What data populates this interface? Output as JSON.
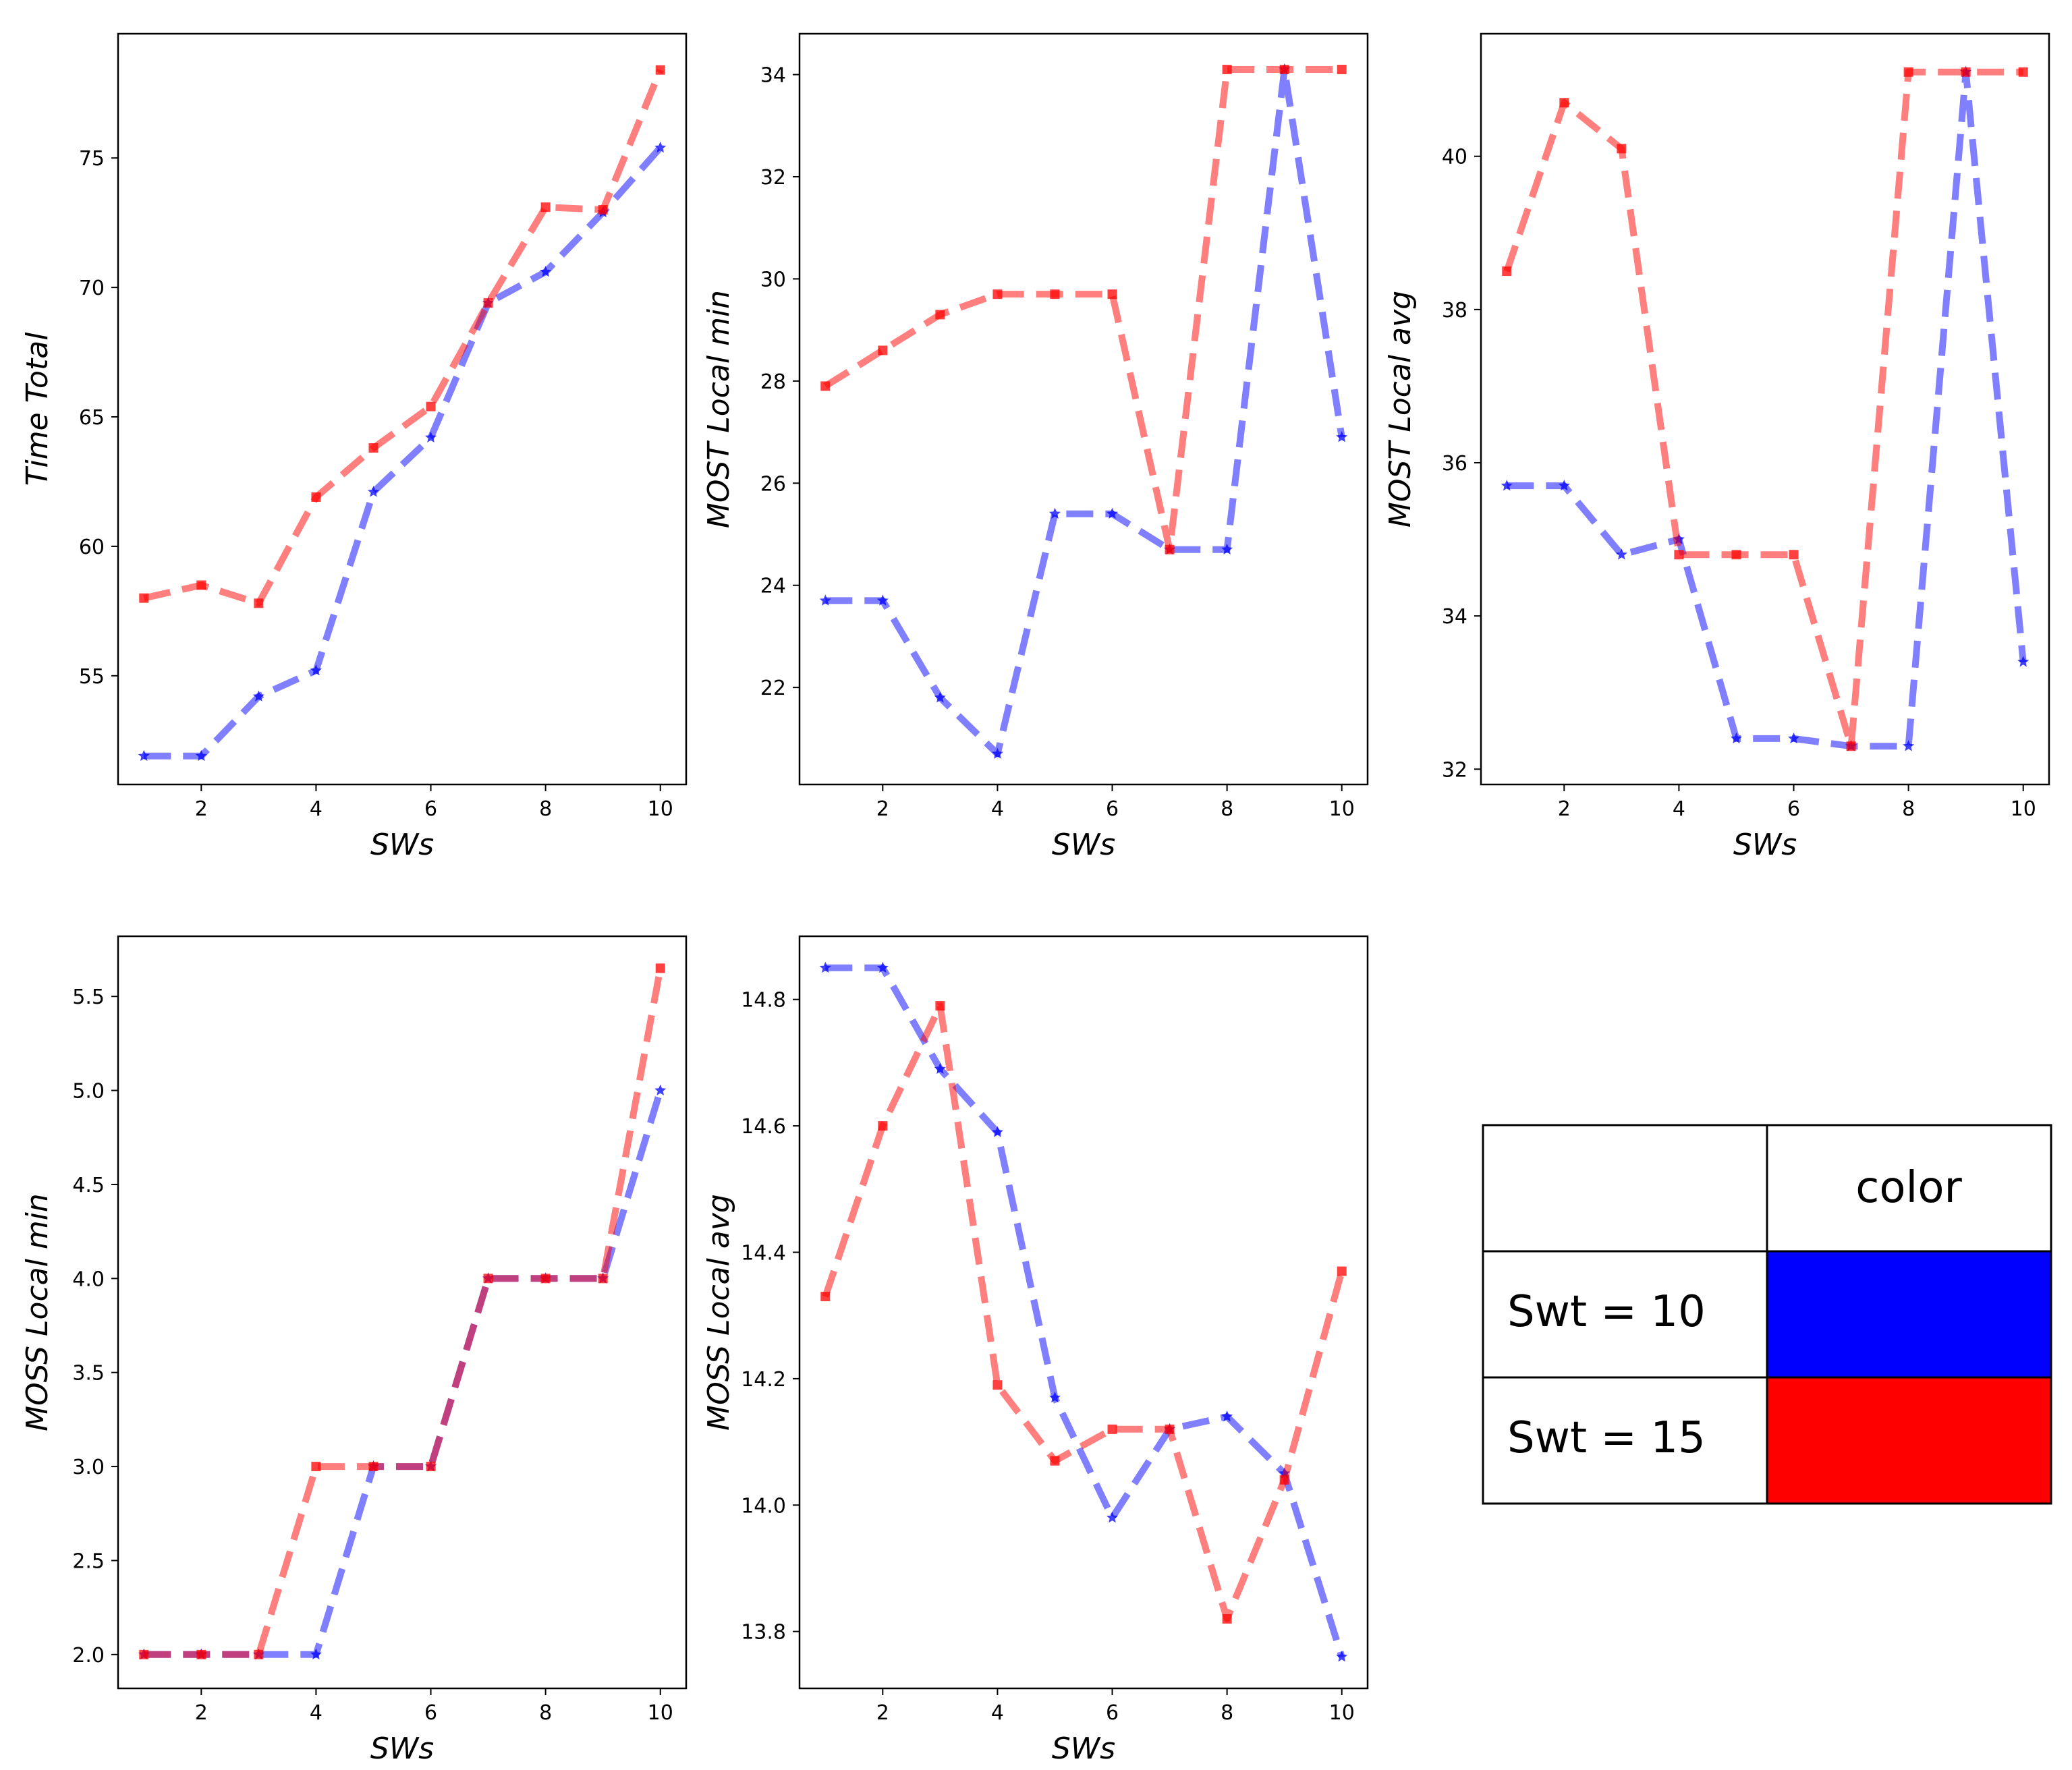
{
  "chart_data": [
    {
      "type": "line",
      "xlabel": "SWs",
      "ylabel": "Time Total",
      "xlim": [
        0.55,
        10.45
      ],
      "ylim": [
        50.8,
        79.8
      ],
      "xticks": [
        2,
        4,
        6,
        8,
        10
      ],
      "yticks": [
        55,
        60,
        65,
        70,
        75
      ],
      "x": [
        1,
        2,
        3,
        4,
        5,
        6,
        7,
        8,
        9,
        10
      ],
      "series": [
        {
          "legend_key": "Swt = 10",
          "color": "#0000ff",
          "marker": "star",
          "values": [
            51.9,
            51.9,
            54.2,
            55.2,
            62.1,
            64.2,
            69.4,
            70.6,
            72.9,
            75.4
          ]
        },
        {
          "legend_key": "Swt = 15",
          "color": "#ff0000",
          "marker": "square",
          "values": [
            58.0,
            58.5,
            57.8,
            61.9,
            63.8,
            65.4,
            69.4,
            73.1,
            73.0,
            78.4
          ]
        }
      ]
    },
    {
      "type": "line",
      "xlabel": "SWs",
      "ylabel": "MOST Local min",
      "xlim": [
        0.55,
        10.45
      ],
      "ylim": [
        20.1,
        34.8
      ],
      "xticks": [
        2,
        4,
        6,
        8,
        10
      ],
      "yticks": [
        22,
        24,
        26,
        28,
        30,
        32,
        34
      ],
      "x": [
        1,
        2,
        3,
        4,
        5,
        6,
        7,
        8,
        9,
        10
      ],
      "series": [
        {
          "legend_key": "Swt = 10",
          "color": "#0000ff",
          "marker": "star",
          "values": [
            23.7,
            23.7,
            21.8,
            20.7,
            25.4,
            25.4,
            24.7,
            24.7,
            34.1,
            26.9
          ]
        },
        {
          "legend_key": "Swt = 15",
          "color": "#ff0000",
          "marker": "square",
          "values": [
            27.9,
            28.6,
            29.3,
            29.7,
            29.7,
            29.7,
            24.7,
            34.1,
            34.1,
            34.1
          ]
        }
      ]
    },
    {
      "type": "line",
      "xlabel": "SWs",
      "ylabel": "MOST Local avg",
      "xlim": [
        0.55,
        10.45
      ],
      "ylim": [
        31.8,
        41.6
      ],
      "xticks": [
        2,
        4,
        6,
        8,
        10
      ],
      "yticks": [
        32,
        34,
        36,
        38,
        40
      ],
      "x": [
        1,
        2,
        3,
        4,
        5,
        6,
        7,
        8,
        9,
        10
      ],
      "series": [
        {
          "legend_key": "Swt = 10",
          "color": "#0000ff",
          "marker": "star",
          "values": [
            35.7,
            35.7,
            34.8,
            35.0,
            32.4,
            32.4,
            32.3,
            32.3,
            41.1,
            33.4
          ]
        },
        {
          "legend_key": "Swt = 15",
          "color": "#ff0000",
          "marker": "square",
          "values": [
            38.5,
            40.7,
            40.1,
            34.8,
            34.8,
            34.8,
            32.3,
            41.1,
            41.1,
            41.1
          ]
        }
      ]
    },
    {
      "type": "line",
      "xlabel": "SWs",
      "ylabel": "MOSS Local min",
      "xlim": [
        0.55,
        10.45
      ],
      "ylim": [
        1.82,
        5.82
      ],
      "xticks": [
        2,
        4,
        6,
        8,
        10
      ],
      "yticks": [
        "2.0",
        "2.5",
        "3.0",
        "3.5",
        "4.0",
        "4.5",
        "5.0",
        "5.5"
      ],
      "x": [
        1,
        2,
        3,
        4,
        5,
        6,
        7,
        8,
        9,
        10
      ],
      "series": [
        {
          "legend_key": "Swt = 10",
          "color": "#0000ff",
          "marker": "star",
          "values": [
            2.0,
            2.0,
            2.0,
            2.0,
            3.0,
            3.0,
            4.0,
            4.0,
            4.0,
            5.0
          ]
        },
        {
          "legend_key": "Swt = 15",
          "color": "#ff0000",
          "marker": "square",
          "values": [
            2.0,
            2.0,
            2.0,
            3.0,
            3.0,
            3.0,
            4.0,
            4.0,
            4.0,
            5.65
          ]
        }
      ]
    },
    {
      "type": "line",
      "xlabel": "SWs",
      "ylabel": "MOSS Local avg",
      "xlim": [
        0.55,
        10.45
      ],
      "ylim": [
        13.71,
        14.9
      ],
      "xticks": [
        2,
        4,
        6,
        8,
        10
      ],
      "yticks": [
        "13.8",
        "14.0",
        "14.2",
        "14.4",
        "14.6",
        "14.8"
      ],
      "x": [
        1,
        2,
        3,
        4,
        5,
        6,
        7,
        8,
        9,
        10
      ],
      "series": [
        {
          "legend_key": "Swt = 10",
          "color": "#0000ff",
          "marker": "star",
          "values": [
            14.85,
            14.85,
            14.69,
            14.59,
            14.17,
            13.98,
            14.12,
            14.14,
            14.05,
            13.76
          ]
        },
        {
          "legend_key": "Swt = 15",
          "color": "#ff0000",
          "marker": "square",
          "values": [
            14.33,
            14.6,
            14.79,
            14.19,
            14.07,
            14.12,
            14.12,
            13.82,
            14.04,
            14.37
          ]
        }
      ]
    }
  ],
  "legend_table": {
    "header": [
      "",
      "color"
    ],
    "rows": [
      {
        "label": "Swt = 10",
        "color": "#0000ff"
      },
      {
        "label": "Swt = 15",
        "color": "#ff0000"
      }
    ]
  }
}
